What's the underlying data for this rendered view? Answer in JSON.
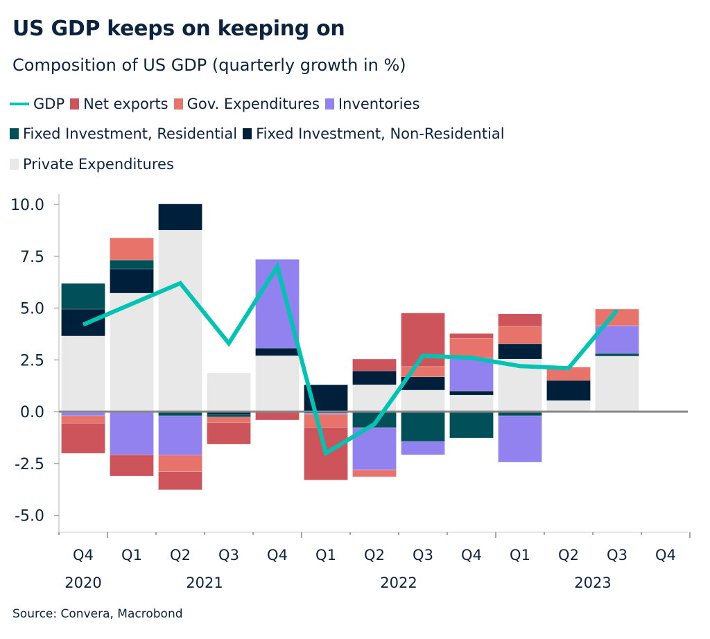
{
  "header": {
    "title": "US GDP keeps on keeping on",
    "subtitle": "Composition of US GDP (quarterly growth in %)"
  },
  "legend": {
    "rows": [
      [
        {
          "key": "gdp",
          "label": "GDP",
          "kind": "line"
        },
        {
          "key": "net_exports",
          "label": "Net exports",
          "kind": "box"
        },
        {
          "key": "gov",
          "label": "Gov. Expenditures",
          "kind": "box"
        },
        {
          "key": "inventories",
          "label": "Inventories",
          "kind": "box"
        }
      ],
      [
        {
          "key": "residential",
          "label": "Fixed Investment, Residential",
          "kind": "box"
        },
        {
          "key": "non_residential",
          "label": "Fixed Investment, Non-Residential",
          "kind": "box"
        }
      ],
      [
        {
          "key": "private",
          "label": "Private Expenditures",
          "kind": "box"
        }
      ]
    ]
  },
  "colors": {
    "gdp": "#00c4b3",
    "net_exports": "#cd545b",
    "gov": "#e8736a",
    "inventories": "#9282ef",
    "residential": "#004f59",
    "non_residential": "#001f3a",
    "private": "#e8e8e8",
    "axis_text": "#0c2340",
    "zero_line": "#888888"
  },
  "source": "Source: Convera, Macrobond",
  "chart_data": {
    "type": "bar",
    "stacked": true,
    "title": "Composition of US GDP (quarterly growth in %)",
    "xlabel": "",
    "ylabel": "",
    "ylim": [
      -5.5,
      10.5
    ],
    "yticks": [
      10.0,
      7.5,
      5.0,
      2.5,
      0.0,
      -2.5,
      -5.0
    ],
    "ytick_labels": [
      "10.0",
      "7.5",
      "5.0",
      "2.5",
      "0.0",
      "-2.5",
      "-5.0"
    ],
    "grid": false,
    "legend_position": "top-left",
    "categories": [
      "Q4",
      "Q1",
      "Q2",
      "Q3",
      "Q4",
      "Q1",
      "Q2",
      "Q3",
      "Q4",
      "Q1",
      "Q2",
      "Q3",
      "Q4"
    ],
    "year_labels": [
      {
        "label": "2020",
        "at_index": 0
      },
      {
        "label": "2021",
        "at_index": 2.5
      },
      {
        "label": "2022",
        "at_index": 6.5
      },
      {
        "label": "2023",
        "at_index": 10.5
      }
    ],
    "stack_order": [
      "private",
      "non_residential",
      "residential",
      "inventories",
      "gov",
      "net_exports"
    ],
    "series": [
      {
        "key": "private",
        "name": "Private Expenditures",
        "values": [
          3.65,
          5.72,
          8.76,
          1.87,
          2.7,
          0.0,
          1.3,
          1.04,
          0.8,
          2.54,
          0.54,
          2.68,
          null
        ]
      },
      {
        "key": "non_residential",
        "name": "Fixed Investment, Non-Residential",
        "values": [
          1.3,
          1.17,
          1.27,
          -0.13,
          0.37,
          1.3,
          0.67,
          0.64,
          0.2,
          0.74,
          0.97,
          0.0,
          null
        ]
      },
      {
        "key": "residential",
        "name": "Fixed Investment, Residential",
        "values": [
          1.24,
          0.43,
          -0.2,
          -0.13,
          0.0,
          -0.08,
          -0.77,
          -1.44,
          -1.27,
          -0.2,
          -0.05,
          0.13,
          null
        ]
      },
      {
        "key": "inventories",
        "name": "Inventories",
        "values": [
          -0.2,
          -2.08,
          -1.9,
          0.0,
          4.28,
          -0.05,
          -2.04,
          -0.64,
          1.6,
          -2.24,
          0.0,
          1.34,
          null
        ]
      },
      {
        "key": "gov",
        "name": "Gov. Expenditures",
        "values": [
          -0.37,
          1.07,
          -0.8,
          -0.27,
          0.0,
          -0.62,
          -0.33,
          0.5,
          0.94,
          0.84,
          0.64,
          0.8,
          null
        ]
      },
      {
        "key": "net_exports",
        "name": "Net exports",
        "values": [
          -1.44,
          -1.03,
          -0.87,
          -1.04,
          -0.4,
          -2.55,
          0.57,
          2.58,
          0.23,
          0.6,
          0.0,
          -0.05,
          null
        ]
      }
    ],
    "line": {
      "key": "gdp",
      "name": "GDP",
      "values": [
        4.2,
        5.2,
        6.2,
        3.3,
        7.0,
        -2.0,
        -0.6,
        2.7,
        2.6,
        2.2,
        2.1,
        4.9,
        null
      ]
    }
  }
}
